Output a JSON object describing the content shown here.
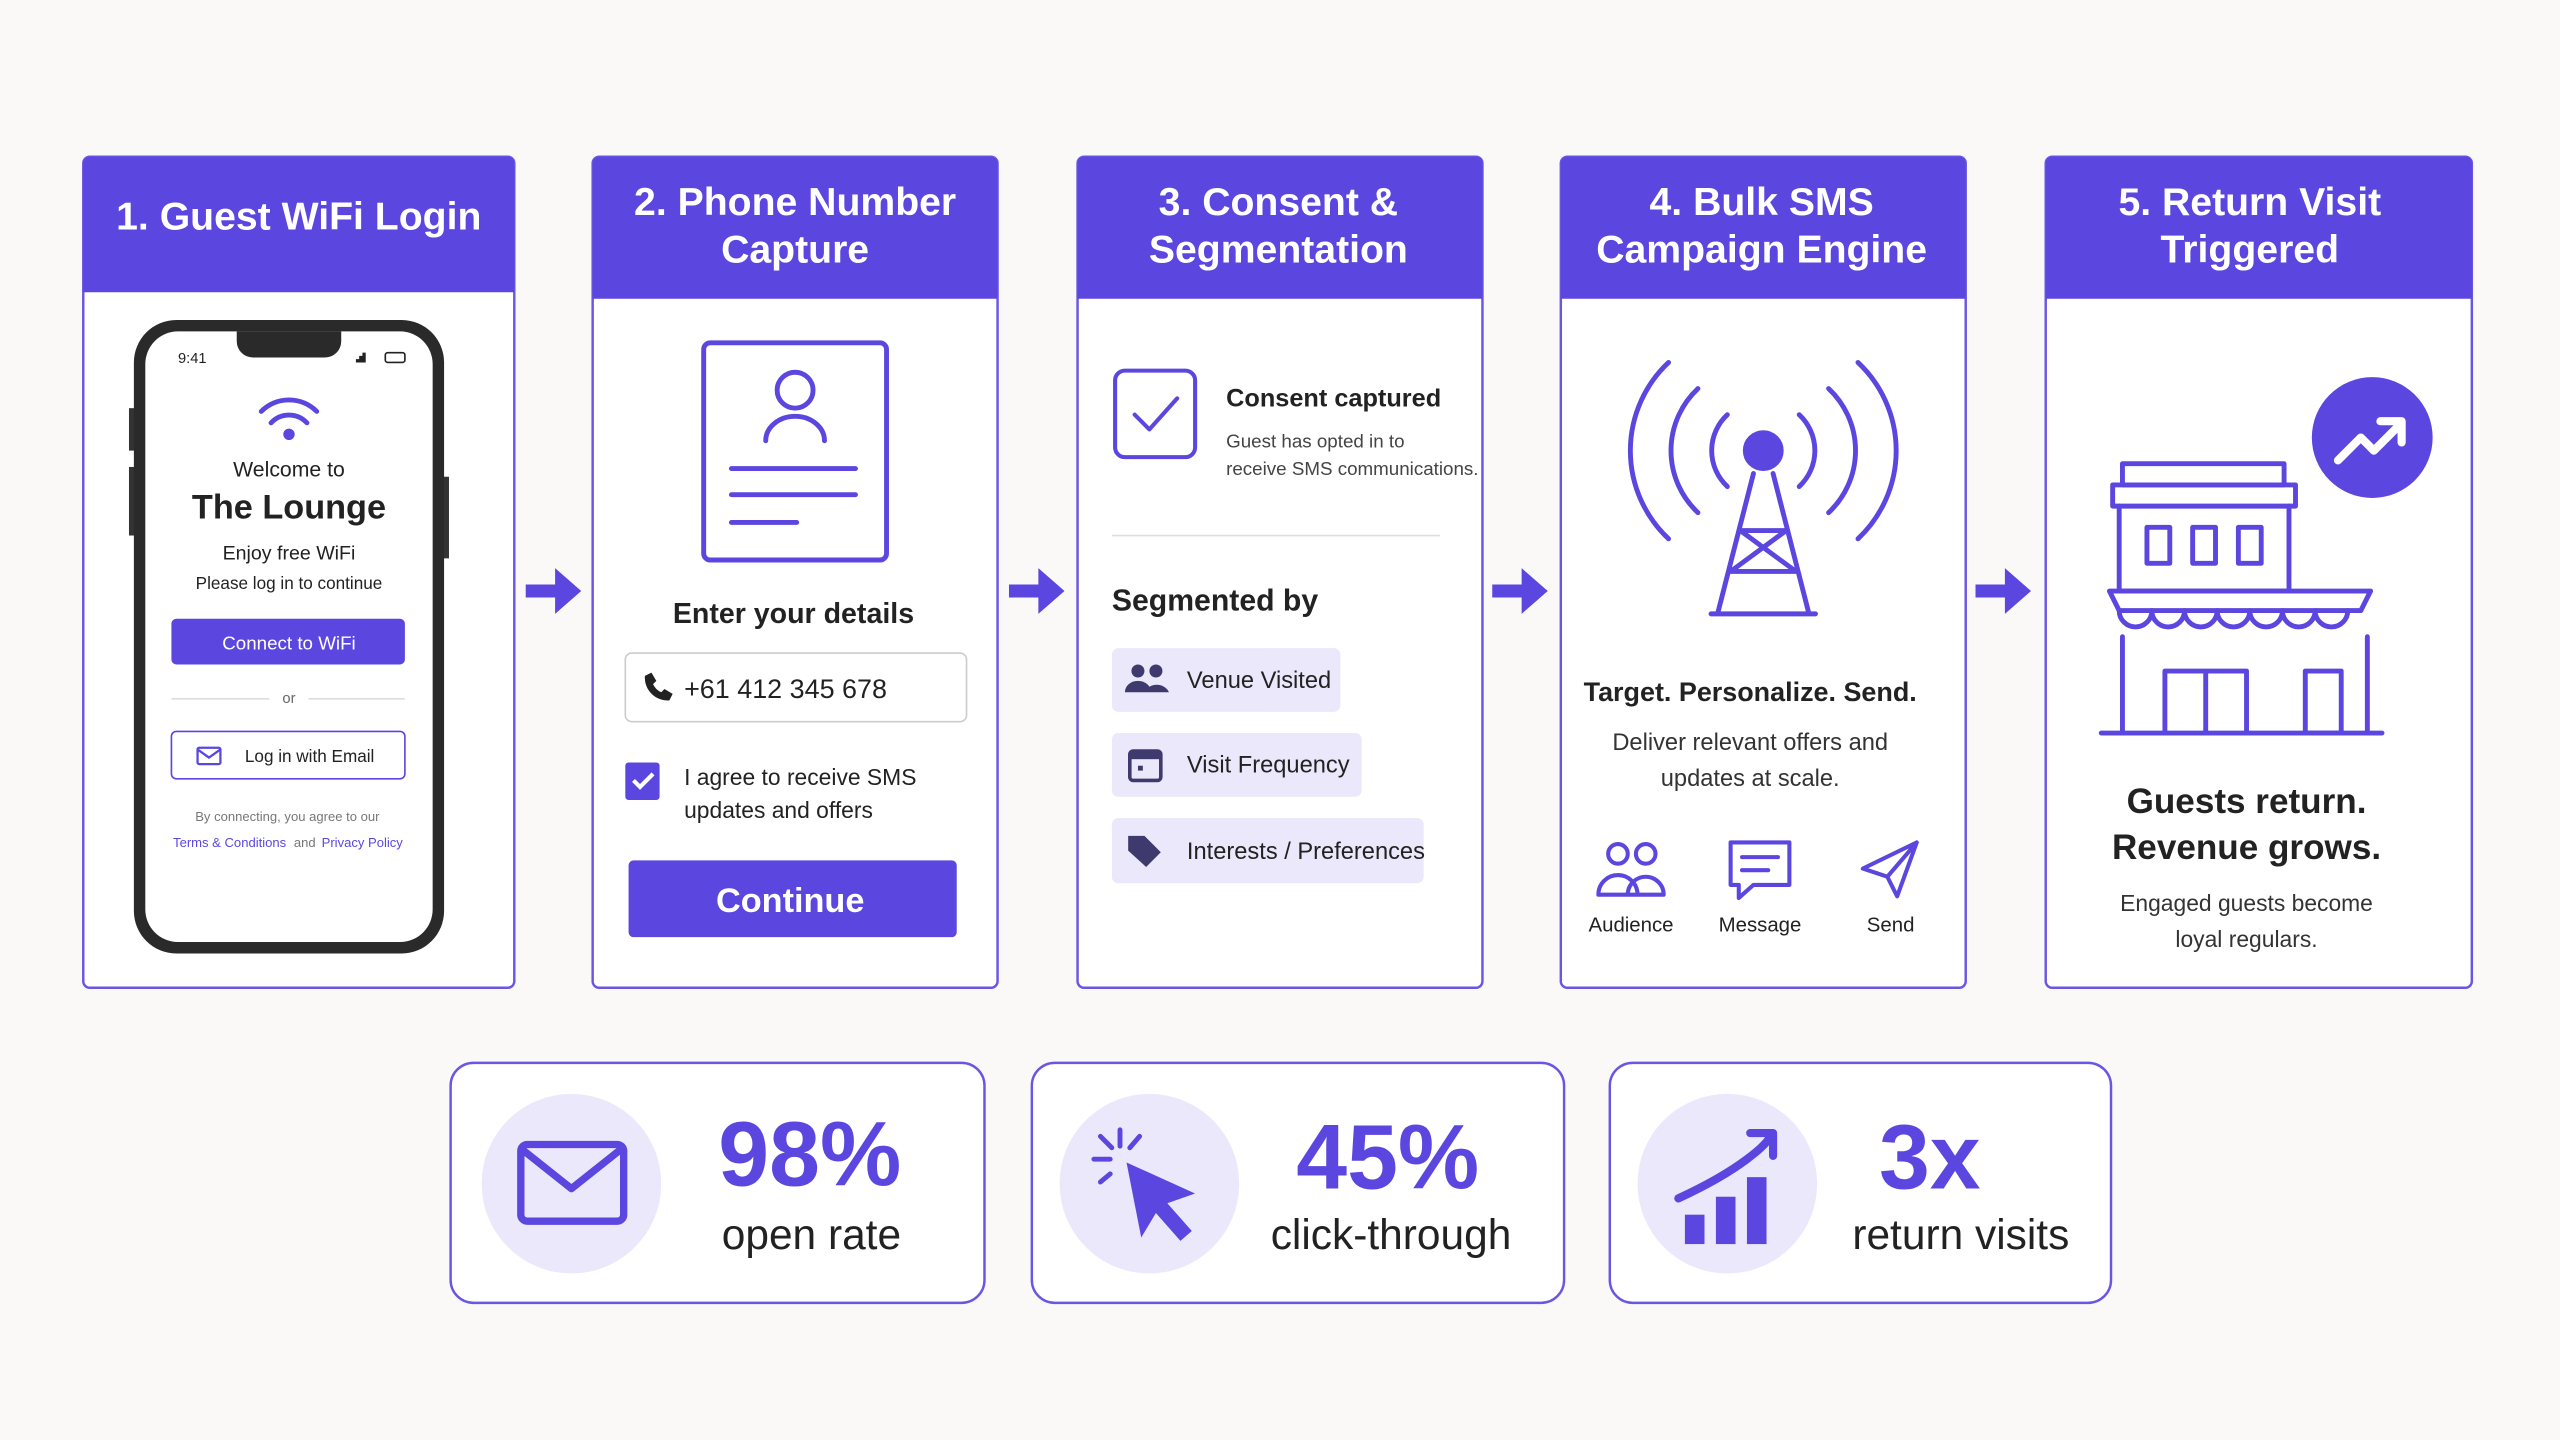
{
  "steps": [
    {
      "title": [
        "1. Guest WiFi Login"
      ],
      "phone": {
        "time": "9:41",
        "welcome": "Welcome to",
        "venue": "The Lounge",
        "offer": "Enjoy free WiFi",
        "prompt": "Please log in to continue",
        "connect_button": "Connect to WiFi",
        "divider": "or",
        "email_button": "Log in with Email",
        "terms_intro": "By connecting, you agree to our",
        "terms_link": "Terms & Conditions",
        "terms_and": "and",
        "privacy_link": "Privacy Policy"
      }
    },
    {
      "title": [
        "2. Phone Number",
        "Capture"
      ],
      "form_heading": "Enter your details",
      "phone_number": "+61 412 345 678",
      "consent": [
        "I agree to receive SMS",
        "updates and offers"
      ],
      "button": "Continue"
    },
    {
      "title": [
        "3. Consent &",
        "Segmentation"
      ],
      "consent_heading": "Consent captured",
      "consent_text": [
        "Guest has opted in to",
        "receive SMS communications."
      ],
      "segments_heading": "Segmented by",
      "segments": [
        "Venue Visited",
        "Visit Frequency",
        "Interests / Preferences"
      ]
    },
    {
      "title": [
        "4. Bulk SMS",
        "Campaign Engine"
      ],
      "headline": "Target. Personalize. Send.",
      "text": [
        "Deliver relevant offers and",
        "updates at scale."
      ],
      "features": [
        "Audience",
        "Message",
        "Send"
      ]
    },
    {
      "title": [
        "5. Return Visit",
        "Triggered"
      ],
      "headline": [
        "Guests return.",
        "Revenue grows."
      ],
      "text": [
        "Engaged guests become",
        "loyal regulars."
      ]
    }
  ],
  "stats": [
    {
      "value": "98%",
      "label": "open rate"
    },
    {
      "value": "45%",
      "label": "click-through"
    },
    {
      "value": "3x",
      "label": "return visits"
    }
  ]
}
